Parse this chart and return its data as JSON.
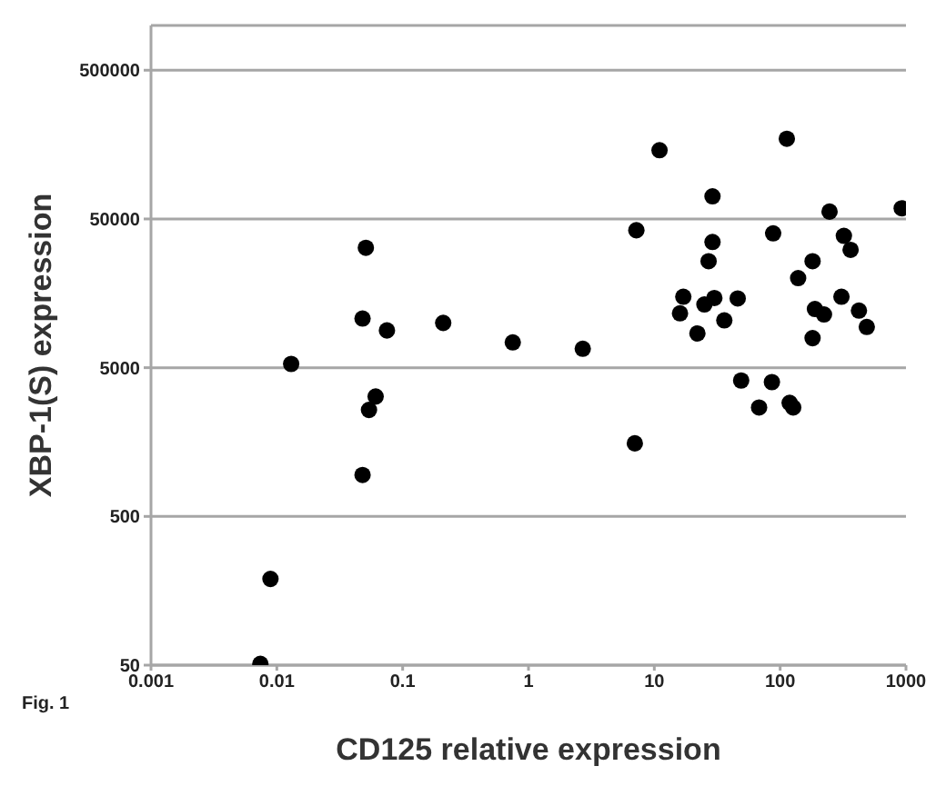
{
  "chart_data": {
    "type": "scatter",
    "xlabel": "CD125 relative expression",
    "ylabel": "XBP-1(S) expression",
    "annotations": [
      "Fig. 1"
    ],
    "x": [
      0.0074,
      0.0089,
      0.013,
      0.048,
      0.054,
      0.061,
      0.048,
      0.051,
      0.075,
      0.21,
      0.75,
      2.7,
      7,
      7.2,
      11,
      17,
      16,
      22,
      25,
      27,
      29,
      29,
      30,
      36,
      46,
      49,
      68,
      86,
      88,
      113,
      119,
      127,
      139,
      181,
      181,
      189,
      223,
      247,
      307,
      321,
      363,
      423,
      488,
      925
    ],
    "series": [
      {
        "color": "#000000",
        "values": [
          51,
          190,
          5300,
          950,
          2600,
          3200,
          10700,
          32000,
          8900,
          10000,
          7400,
          6700,
          1550,
          42000,
          145000,
          15000,
          11600,
          8500,
          13300,
          26000,
          35000,
          71000,
          14700,
          10400,
          14600,
          4100,
          2700,
          4000,
          40000,
          173000,
          2900,
          2700,
          20000,
          26000,
          7900,
          12400,
          11400,
          56000,
          15000,
          38500,
          31000,
          12100,
          9400,
          59000
        ]
      }
    ],
    "xlim": [
      0.001,
      1000
    ],
    "xticks": [
      0.001,
      0.01,
      0.1,
      1,
      10,
      100,
      1000
    ],
    "ylim": [
      50,
      1000000
    ],
    "yticks": [
      50,
      500,
      5000,
      50000,
      500000
    ],
    "log": "xy",
    "grid": "y",
    "legend": false,
    "marker": "circle"
  }
}
